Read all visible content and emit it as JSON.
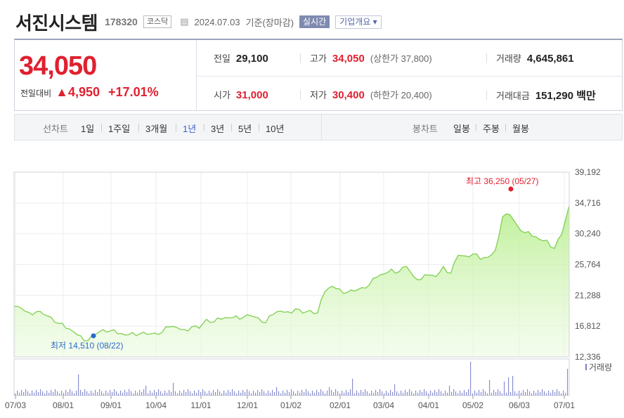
{
  "header": {
    "company_name": "서진시스템",
    "code": "178320",
    "market": "코스닥",
    "date": "2024.07.03",
    "basis": "기준(장마감)",
    "realtime_label": "실시간",
    "corp_overview_label": "기업개요 ▾"
  },
  "quote": {
    "price": "34,050",
    "change_label": "전일대비",
    "change_value": "▲4,950",
    "change_percent": "+17.01%",
    "prev_close_label": "전일",
    "prev_close": "29,100",
    "high_label": "고가",
    "high": "34,050",
    "upper_limit": "(상한가 37,800)",
    "volume_label": "거래량",
    "volume": "4,645,861",
    "open_label": "시가",
    "open": "31,000",
    "low_label": "저가",
    "low": "30,400",
    "lower_limit": "(하한가 20,400)",
    "amount_label": "거래대금",
    "amount": "151,290 백만"
  },
  "tabs": {
    "line_chart_label": "선차트",
    "periods": [
      "1일",
      "1주일",
      "3개월",
      "1년",
      "3년",
      "5년",
      "10년"
    ],
    "active_period": "1년",
    "candle_label": "봉차트",
    "candle_periods": [
      "일봉",
      "주봉",
      "월봉"
    ]
  },
  "chart_data": {
    "type": "area",
    "y_ticks": [
      "39,192",
      "34,716",
      "30,240",
      "25,764",
      "21,288",
      "16,812",
      "12,336"
    ],
    "ylim": [
      12336,
      39192
    ],
    "x_ticks": [
      "07/03",
      "08/01",
      "09/01",
      "10/04",
      "11/01",
      "12/01",
      "01/02",
      "02/01",
      "03/04",
      "04/01",
      "05/02",
      "06/03",
      "07/01"
    ],
    "max_annotation": "최고 36,250 (05/27)",
    "min_annotation": "최저 14,510 (08/22)",
    "volume_legend": "거래량",
    "line_color": "#7ed04f",
    "series_values": [
      19700,
      19400,
      18800,
      18900,
      18500,
      18100,
      17200,
      16500,
      16000,
      15400,
      14700,
      15600,
      16300,
      16100,
      15700,
      15500,
      15900,
      15700,
      15600,
      15800,
      15900,
      16700,
      16600,
      16300,
      16700,
      16500,
      17800,
      17400,
      17800,
      18000,
      18300,
      18100,
      18300,
      18000,
      17300,
      18500,
      19000,
      18900,
      19300,
      18700,
      19100,
      18700,
      21800,
      22600,
      22200,
      21700,
      21900,
      22400,
      22800,
      23900,
      24400,
      25100,
      24700,
      25500,
      24000,
      23600,
      24200,
      24000,
      25500,
      24500,
      27100,
      27000,
      27300,
      26500,
      26800,
      27800,
      32700,
      33000,
      31400,
      30400,
      29900,
      29400,
      29300,
      28100,
      30200,
      34300
    ]
  }
}
